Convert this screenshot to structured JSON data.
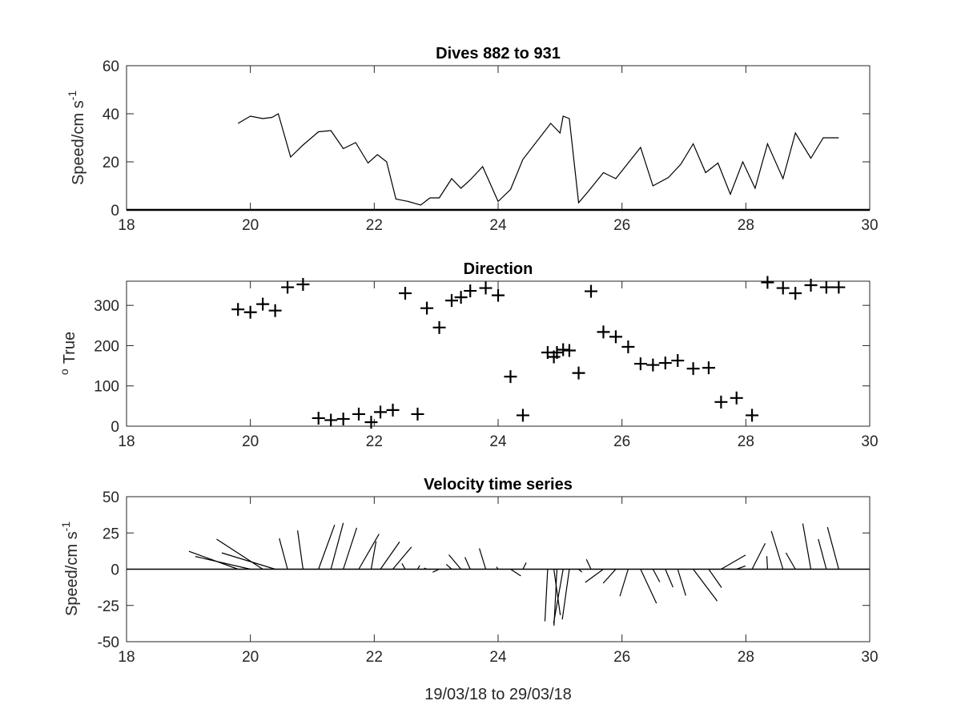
{
  "figure": {
    "xlabel": "19/03/18 to 29/03/18",
    "background": "#ffffff",
    "axis_color": "#262626",
    "data_color": "#000000"
  },
  "chart_data": [
    {
      "type": "line",
      "title": "Dives 882 to 931",
      "ylabel": "Speed/cm s",
      "ylabel_superscript": "-1",
      "xlim": [
        18,
        30
      ],
      "ylim": [
        0,
        60
      ],
      "xticks": [
        18,
        20,
        22,
        24,
        26,
        28,
        30
      ],
      "yticks": [
        0,
        20,
        40,
        60
      ],
      "grid": false,
      "x": [
        19.8,
        20.0,
        20.2,
        20.35,
        20.45,
        20.65,
        20.85,
        21.1,
        21.3,
        21.5,
        21.7,
        21.9,
        22.05,
        22.2,
        22.35,
        22.55,
        22.75,
        22.9,
        23.05,
        23.25,
        23.4,
        23.55,
        23.75,
        24.0,
        24.2,
        24.4,
        24.85,
        25.0,
        25.05,
        25.15,
        25.3,
        25.45,
        25.7,
        25.9,
        26.1,
        26.3,
        26.5,
        26.75,
        26.95,
        27.15,
        27.35,
        27.55,
        27.75,
        27.95,
        28.15,
        28.35,
        28.6,
        28.8,
        29.05,
        29.25,
        29.5
      ],
      "values": [
        36,
        39,
        38,
        38.5,
        40,
        22,
        27,
        32.5,
        33,
        25.5,
        28,
        19.5,
        23,
        20,
        4.5,
        3.5,
        2,
        5,
        5,
        13,
        9,
        12.5,
        18,
        3.5,
        8.5,
        21,
        36,
        32,
        39,
        38,
        3,
        7.5,
        15.5,
        13,
        19.5,
        26,
        10,
        13.5,
        19,
        27.5,
        15.5,
        19.5,
        6.5,
        20,
        9,
        27.5,
        13,
        32,
        21.5,
        30,
        30
      ]
    },
    {
      "type": "scatter",
      "title": "Direction",
      "ylabel": "True",
      "ylabel_prefix": "o",
      "xlim": [
        18,
        30
      ],
      "ylim": [
        0,
        360
      ],
      "xticks": [
        18,
        20,
        22,
        24,
        26,
        28,
        30
      ],
      "yticks": [
        0,
        100,
        200,
        300
      ],
      "marker": "+",
      "grid": false,
      "x": [
        19.8,
        20.0,
        20.2,
        20.4,
        20.6,
        20.85,
        21.1,
        21.3,
        21.5,
        21.75,
        21.95,
        22.1,
        22.3,
        22.5,
        22.7,
        22.85,
        23.05,
        23.25,
        23.4,
        23.55,
        23.8,
        24.0,
        24.2,
        24.4,
        24.8,
        24.9,
        24.95,
        25.05,
        25.15,
        25.3,
        25.5,
        25.7,
        25.9,
        26.1,
        26.3,
        26.5,
        26.7,
        26.9,
        27.15,
        27.4,
        27.6,
        27.85,
        28.1,
        28.35,
        28.6,
        28.8,
        29.05,
        29.3,
        29.5
      ],
      "values": [
        290,
        283,
        303,
        287,
        345,
        352,
        20,
        15,
        18,
        30,
        10,
        35,
        40,
        330,
        30,
        293,
        245,
        312,
        320,
        336,
        343,
        325,
        123,
        27,
        183,
        172,
        183,
        190,
        188,
        132,
        335,
        234,
        222,
        197,
        155,
        152,
        157,
        163,
        143,
        145,
        60,
        70,
        27,
        357,
        343,
        330,
        350,
        345,
        345
      ]
    },
    {
      "type": "quiver",
      "title": "Velocity time series",
      "ylabel": "Speed/cm s",
      "ylabel_superscript": "-1",
      "xlim": [
        18,
        30
      ],
      "ylim": [
        -50,
        50
      ],
      "xticks": [
        18,
        20,
        22,
        24,
        26,
        28,
        30
      ],
      "yticks": [
        -50,
        -25,
        0,
        25,
        50
      ],
      "grid": false,
      "x": [
        19.8,
        20.0,
        20.2,
        20.4,
        20.6,
        20.85,
        21.1,
        21.3,
        21.5,
        21.75,
        21.95,
        22.1,
        22.3,
        22.5,
        22.7,
        22.85,
        23.05,
        23.25,
        23.4,
        23.55,
        23.8,
        24.0,
        24.2,
        24.4,
        24.8,
        24.9,
        24.95,
        25.05,
        25.15,
        25.3,
        25.5,
        25.7,
        25.9,
        26.1,
        26.3,
        26.5,
        26.7,
        26.9,
        27.15,
        27.4,
        27.6,
        27.85,
        28.1,
        28.35,
        28.6,
        28.8,
        29.05,
        29.3,
        29.5
      ],
      "speed": [
        36,
        39,
        38,
        38.5,
        22,
        27,
        32.5,
        33,
        30,
        28,
        19.5,
        23,
        20,
        4.5,
        3,
        2,
        5,
        5,
        13,
        9,
        15,
        2,
        8.5,
        5,
        36,
        32,
        39,
        38,
        35,
        3,
        7.5,
        15.5,
        13,
        19.5,
        26,
        10,
        13.5,
        19,
        27.5,
        15.5,
        19.5,
        6.5,
        20,
        9,
        27.5,
        13,
        32,
        21.5,
        30
      ],
      "direction": [
        290,
        283,
        303,
        287,
        345,
        352,
        20,
        15,
        18,
        30,
        10,
        35,
        40,
        330,
        30,
        293,
        245,
        312,
        320,
        336,
        343,
        325,
        123,
        27,
        183,
        172,
        183,
        190,
        188,
        132,
        335,
        234,
        222,
        197,
        155,
        152,
        157,
        163,
        143,
        145,
        60,
        70,
        27,
        357,
        343,
        330,
        350,
        345,
        345
      ]
    }
  ]
}
